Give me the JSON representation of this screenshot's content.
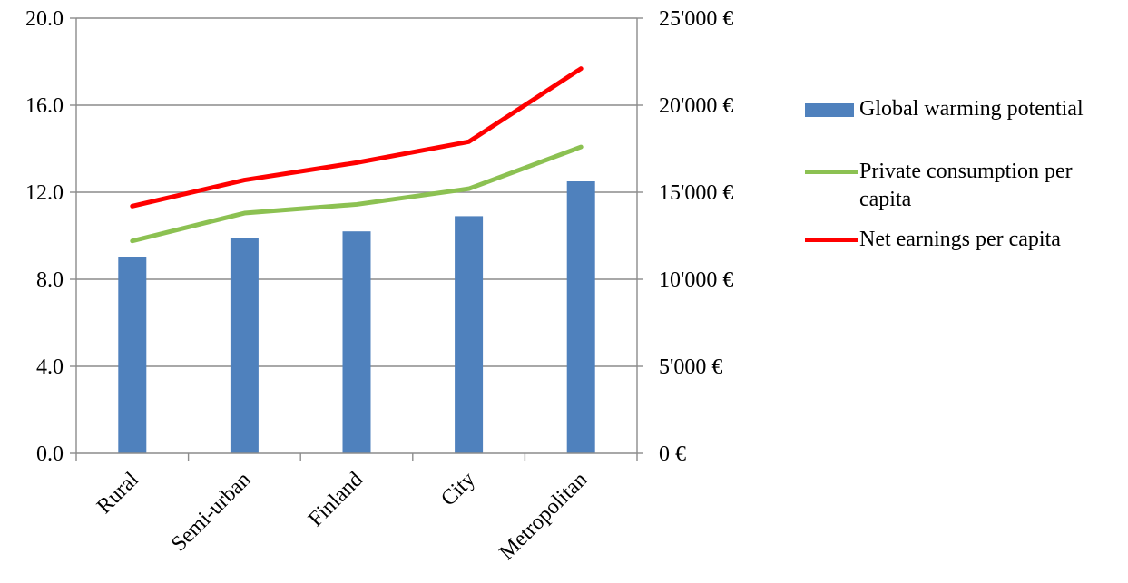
{
  "chart_data": {
    "type": "bar",
    "categories": [
      "Rural",
      "Semi-urban",
      "Finland",
      "City",
      "Metropolitan"
    ],
    "y_left": {
      "ylim": [
        0,
        20
      ],
      "ticks": [
        "0.0",
        "4.0",
        "8.0",
        "12.0",
        "16.0",
        "20.0"
      ],
      "gridlines": true
    },
    "y_right": {
      "ylim": [
        0,
        25000
      ],
      "ticks": [
        "0 €",
        "5'000 €",
        "10'000 €",
        "15'000 €",
        "20'000 €",
        "25'000 €"
      ]
    },
    "series": [
      {
        "name": "Global warming potential",
        "type": "bar",
        "axis": "left",
        "color": "#4f81bd",
        "values": [
          9.0,
          9.9,
          10.2,
          10.9,
          12.5
        ]
      },
      {
        "name": "Private consumption per capita",
        "type": "line",
        "axis": "right",
        "color": "#8cc152",
        "values": [
          12200,
          13800,
          14300,
          15200,
          17600
        ]
      },
      {
        "name": "Net earnings per capita",
        "type": "line",
        "axis": "right",
        "color": "#ff0000",
        "values": [
          14200,
          15700,
          16700,
          17900,
          22100
        ]
      }
    ],
    "legend_position": "right"
  }
}
